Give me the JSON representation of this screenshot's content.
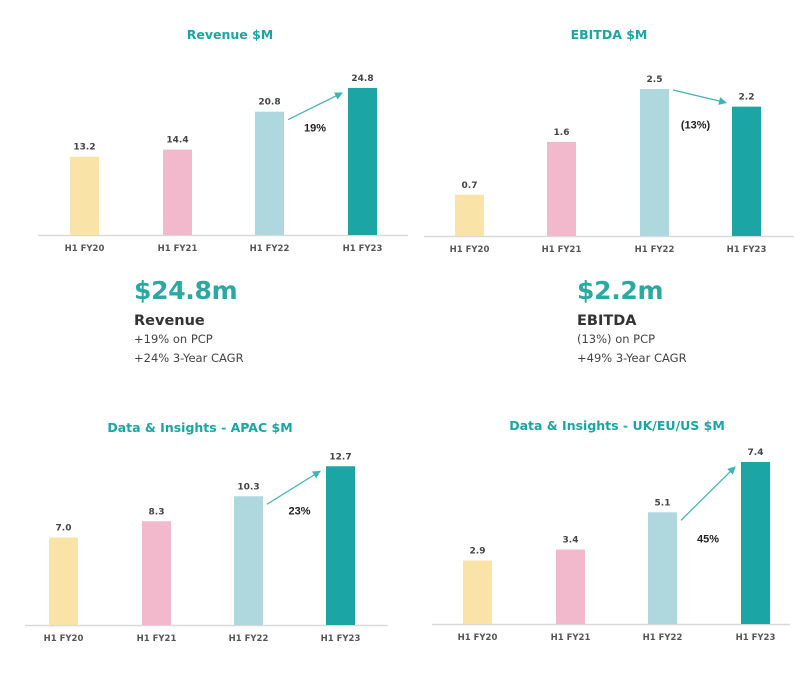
{
  "colors": {
    "title": "#1BA5A5",
    "bars": [
      "#F9E3A6",
      "#F2B8CB",
      "#AED8DD",
      "#1BA5A5"
    ],
    "arrow": "#3DB3B3",
    "axis": "#D9D9D9"
  },
  "chart_data": [
    {
      "type": "bar",
      "title": "Revenue $M",
      "categories": [
        "H1 FY20",
        "H1 FY21",
        "H1 FY22",
        "H1 FY23"
      ],
      "values": [
        13.2,
        14.4,
        20.8,
        24.8
      ],
      "value_labels": [
        "13.2",
        "14.4",
        "20.8",
        "24.8"
      ],
      "annotation": {
        "from": "H1 FY22",
        "to": "H1 FY23",
        "text": "19%",
        "direction": "up"
      },
      "xlabel": "",
      "ylabel": "",
      "grid": false,
      "legend": "none"
    },
    {
      "type": "bar",
      "title": "EBITDA $M",
      "categories": [
        "H1 FY20",
        "H1 FY21",
        "H1 FY22",
        "H1 FY23"
      ],
      "values": [
        0.7,
        1.6,
        2.5,
        2.2
      ],
      "value_labels": [
        "0.7",
        "1.6",
        "2.5",
        "2.2"
      ],
      "annotation": {
        "from": "H1 FY22",
        "to": "H1 FY23",
        "text": "(13%)",
        "direction": "down"
      },
      "xlabel": "",
      "ylabel": "",
      "grid": false,
      "legend": "none"
    },
    {
      "type": "bar",
      "title": "Data & Insights - APAC $M",
      "categories": [
        "H1 FY20",
        "H1 FY21",
        "H1 FY22",
        "H1 FY23"
      ],
      "values": [
        7.0,
        8.3,
        10.3,
        12.7
      ],
      "value_labels": [
        "7.0",
        "8.3",
        "10.3",
        "12.7"
      ],
      "annotation": {
        "from": "H1 FY22",
        "to": "H1 FY23",
        "text": "23%",
        "direction": "up"
      },
      "xlabel": "",
      "ylabel": "",
      "grid": false,
      "legend": "none"
    },
    {
      "type": "bar",
      "title": "Data & Insights - UK/EU/US $M",
      "categories": [
        "H1 FY20",
        "H1 FY21",
        "H1 FY22",
        "H1 FY23"
      ],
      "values": [
        2.9,
        3.4,
        5.1,
        7.4
      ],
      "value_labels": [
        "2.9",
        "3.4",
        "5.1",
        "7.4"
      ],
      "annotation": {
        "from": "H1 FY22",
        "to": "H1 FY23",
        "text": "45%",
        "direction": "up"
      },
      "xlabel": "",
      "ylabel": "",
      "grid": false,
      "legend": "none"
    }
  ],
  "kpis": [
    {
      "value": "$24.8m",
      "label": "Revenue",
      "lines": [
        "+19% on PCP",
        "+24% 3-Year CAGR"
      ]
    },
    {
      "value": "$2.2m",
      "label": "EBITDA",
      "lines": [
        "(13%) on PCP",
        "+49% 3-Year CAGR"
      ]
    }
  ]
}
